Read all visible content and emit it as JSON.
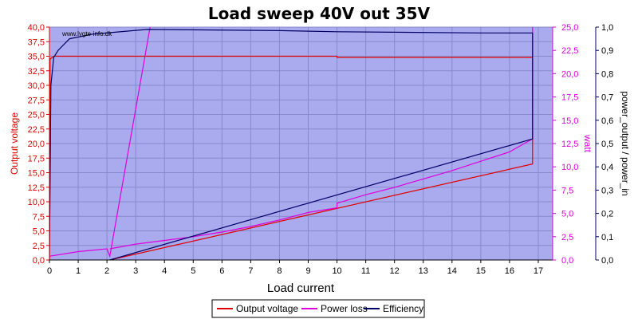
{
  "chart_data": {
    "type": "line",
    "title": "Load sweep 40V out 35V",
    "watermark": "www.lygte-info.dk",
    "xlabel": "Load current",
    "xlim": [
      0,
      17.5
    ],
    "xticks": [
      0,
      1,
      2,
      3,
      4,
      5,
      6,
      7,
      8,
      9,
      10,
      11,
      12,
      13,
      14,
      15,
      16,
      17
    ],
    "y_left": {
      "label": "Output voltage",
      "lim": [
        0,
        40
      ],
      "ticks": [
        "0,0",
        "2,5",
        "5,0",
        "7,5",
        "10,0",
        "12,5",
        "15,0",
        "17,5",
        "20,0",
        "22,5",
        "25,0",
        "27,5",
        "30,0",
        "32,5",
        "35,0",
        "37,5",
        "40,0"
      ],
      "color": "#e00000"
    },
    "y_right1": {
      "label": "watt",
      "lim": [
        0,
        25
      ],
      "ticks": [
        "0,0",
        "2,5",
        "5,0",
        "7,5",
        "10,0",
        "12,5",
        "15,0",
        "17,5",
        "20,0",
        "22,5",
        "25,0"
      ],
      "color": "#dd00dd"
    },
    "y_right2": {
      "label": "power_output / power_in",
      "lim": [
        0,
        1
      ],
      "ticks": [
        "0,0",
        "0,1",
        "0,2",
        "0,3",
        "0,4",
        "0,5",
        "0,6",
        "0,7",
        "0,8",
        "0,9",
        "1,0"
      ],
      "color": "#000066"
    },
    "legend_position": "bottom-center",
    "grid": true,
    "colors": {
      "plot_bg": "#aaaaee",
      "grid": "#8888cc"
    },
    "series": [
      {
        "name": "Output voltage",
        "axis": "left",
        "color": "#e00000",
        "points": [
          [
            0,
            0
          ],
          [
            0.02,
            34.5
          ],
          [
            0.15,
            35.0
          ],
          [
            10.0,
            35.0
          ],
          [
            10.0,
            34.8
          ],
          [
            16.8,
            34.8
          ],
          [
            16.8,
            16.5
          ],
          [
            2.1,
            0
          ]
        ]
      },
      {
        "name": "Power loss",
        "axis": "right1",
        "color": "#dd00dd",
        "points": [
          [
            0,
            0.4
          ],
          [
            1.0,
            0.9
          ],
          [
            2.0,
            1.2
          ],
          [
            2.1,
            0.4
          ],
          [
            3.5,
            25.0
          ]
        ],
        "points2": [
          [
            2.1,
            1.2
          ],
          [
            3.0,
            1.7
          ],
          [
            4.0,
            2.1
          ],
          [
            5.0,
            2.5
          ],
          [
            6.0,
            3.0
          ],
          [
            7.0,
            3.6
          ],
          [
            8.0,
            4.3
          ],
          [
            9.0,
            5.1
          ],
          [
            10.0,
            5.6
          ],
          [
            10.0,
            6.1
          ],
          [
            11.0,
            7.0
          ],
          [
            12.0,
            7.8
          ],
          [
            13.0,
            8.7
          ],
          [
            14.0,
            9.6
          ],
          [
            15.0,
            10.6
          ],
          [
            16.0,
            11.6
          ],
          [
            16.8,
            13.0
          ],
          [
            16.8,
            25.0
          ]
        ]
      },
      {
        "name": "Efficiency",
        "axis": "right2",
        "color": "#000066",
        "points": [
          [
            0,
            0
          ],
          [
            0.05,
            0.75
          ],
          [
            0.15,
            0.87
          ],
          [
            0.3,
            0.9
          ],
          [
            0.7,
            0.95
          ],
          [
            1.5,
            0.97
          ],
          [
            3.4,
            0.99
          ],
          [
            8.0,
            0.985
          ],
          [
            10.0,
            0.98
          ],
          [
            15.0,
            0.975
          ],
          [
            16.8,
            0.975
          ],
          [
            16.8,
            0.52
          ],
          [
            2.1,
            0
          ]
        ]
      }
    ]
  }
}
